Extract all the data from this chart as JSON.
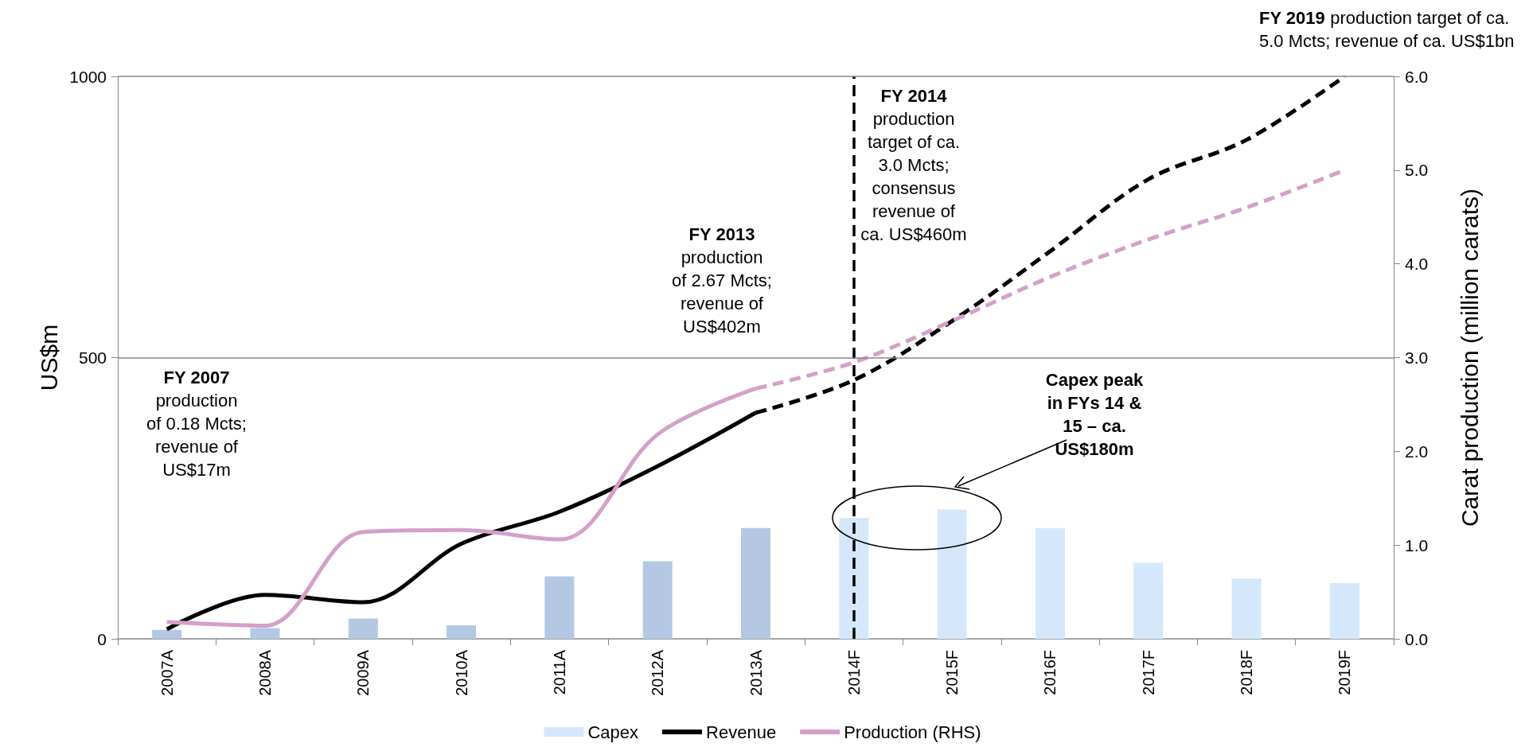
{
  "chart_data": {
    "type": "bar",
    "ylabel": "US$m",
    "y2label": "Carat production (million carats)",
    "categories": [
      "2007A",
      "2008A",
      "2009A",
      "2010A",
      "2011A",
      "2012A",
      "2013A",
      "2014F",
      "2015F",
      "2016F",
      "2017F",
      "2018F",
      "2019F"
    ],
    "series": [
      {
        "name": "Capex",
        "type": "bar",
        "color": "#d5e8fb",
        "colors": [
          "#b4c8e4",
          "#b4c8e4",
          "#b4c8e4",
          "#b4c8e4",
          "#b4c8e4",
          "#b4c8e4",
          "#b4c8e4",
          "#d5e8fb",
          "#d5e8fb",
          "#d5e8fb",
          "#d5e8fb",
          "#d5e8fb",
          "#d5e8fb"
        ],
        "values": [
          16,
          19,
          36,
          24,
          111,
          138,
          197,
          215,
          230,
          197,
          135,
          107,
          99
        ]
      },
      {
        "name": "Revenue",
        "type": "line",
        "color": "#000000",
        "line_style": "solid",
        "values": [
          17,
          78,
          65,
          169,
          226,
          307,
          402,
          null,
          null,
          null,
          null,
          null,
          null
        ]
      },
      {
        "type": "line",
        "color": "#000000",
        "line_style": "dashed",
        "values": [
          null,
          null,
          null,
          null,
          null,
          null,
          402,
          460,
          565,
          689,
          817,
          887,
          1000
        ]
      },
      {
        "name": "Production (RHS)",
        "type": "line",
        "color": "#d4a0c8",
        "axis": "y2",
        "line_style": "solid",
        "values": [
          0.18,
          0.14,
          1.14,
          1.16,
          1.06,
          2.18,
          2.67,
          null,
          null,
          null,
          null,
          null,
          null
        ]
      },
      {
        "type": "line",
        "color": "#d4a0c8",
        "axis": "y2",
        "line_style": "dashed",
        "values": [
          null,
          null,
          null,
          null,
          null,
          null,
          2.67,
          2.95,
          3.39,
          3.86,
          4.26,
          4.6,
          5.0
        ]
      }
    ],
    "ylim": [
      0,
      1000
    ],
    "yticks": [
      0,
      500,
      1000
    ],
    "y2lim": [
      0,
      6
    ],
    "y2ticks": [
      {
        "value": 0,
        "label": "0.0"
      },
      {
        "value": 1,
        "label": "1.0"
      },
      {
        "value": 2,
        "label": "2.0"
      },
      {
        "value": 3,
        "label": "3.0"
      },
      {
        "value": 4,
        "label": "4.0"
      },
      {
        "value": 5,
        "label": "5.0"
      },
      {
        "value": 6,
        "label": "6.0"
      }
    ],
    "ref_lines": [
      {
        "axis": "x",
        "value": "2014F",
        "color": "#000000",
        "line_style": "dashed"
      },
      {
        "axis": "y",
        "value": 500,
        "color": "#888888",
        "line_style": "solid"
      },
      {
        "axis": "y",
        "value": 1000,
        "color": "#888888",
        "line_style": "solid"
      }
    ],
    "annotations": [
      "FY 2007\nproduction\nof 0.18 Mcts;\nrevenue of\nUS$17m",
      "FY 2013\nproduction\nof 2.67 Mcts;\nrevenue of\nUS$402m",
      "FY 2014\nproduction\ntarget of ca.\n3.0 Mcts;\nconsensus\nrevenue of\nca. US$460m",
      "FY 2019 production target of ca.\n5.0 Mcts; revenue of ca. US$1bn",
      "Capex peak\nin FYs 14 &\n15 – ca.\nUS$180m"
    ],
    "legend": "bottom",
    "marker": "none"
  }
}
